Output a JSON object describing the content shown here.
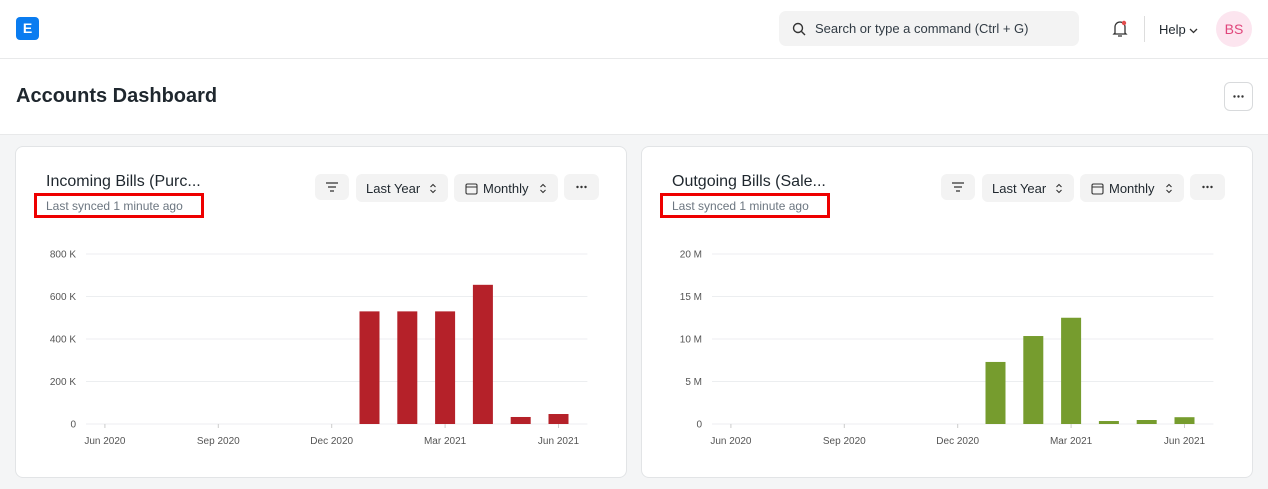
{
  "navbar": {
    "logo": "E",
    "search_placeholder": "Search or type a command (Ctrl + G)",
    "help": "Help",
    "avatar": "BS"
  },
  "page_title": "Accounts Dashboard",
  "chart_data": [
    {
      "type": "bar",
      "title": "Incoming Bills (Purc...",
      "subtitle": "Last synced 1 minute ago",
      "timespan": "Last Year",
      "interval": "Monthly",
      "color": "#b52129",
      "categories": [
        "Jun 2020",
        null,
        null,
        "Sep 2020",
        null,
        null,
        "Dec 2020",
        null,
        null,
        "Mar 2021",
        null,
        null,
        "Jun 2021"
      ],
      "values": [
        0,
        0,
        0,
        0,
        0,
        0,
        0,
        530000,
        530000,
        530000,
        655000,
        33000,
        47000
      ],
      "ylim": [
        0,
        800000
      ],
      "yticks": [
        0,
        {
          "value": 200000,
          "label": "200 K"
        },
        {
          "value": 400000,
          "label": "400 K"
        },
        {
          "value": 600000,
          "label": "600 K"
        },
        {
          "value": 800000,
          "label": "800 K"
        }
      ],
      "grid": true
    },
    {
      "type": "bar",
      "title": "Outgoing Bills (Sale...",
      "subtitle": "Last synced 1 minute ago",
      "timespan": "Last Year",
      "interval": "Monthly",
      "color": "#769c2e",
      "categories": [
        "Jun 2020",
        null,
        null,
        "Sep 2020",
        null,
        null,
        "Dec 2020",
        null,
        null,
        "Mar 2021",
        null,
        null,
        "Jun 2021"
      ],
      "values": [
        0,
        0,
        0,
        0,
        0,
        0,
        0,
        7300000,
        10350000,
        12500000,
        350000,
        470000,
        800000
      ],
      "ylim": [
        0,
        20000000
      ],
      "yticks": [
        0,
        {
          "value": 5000000,
          "label": "5 M"
        },
        {
          "value": 10000000,
          "label": "10 M"
        },
        {
          "value": 15000000,
          "label": "15 M"
        },
        {
          "value": 20000000,
          "label": "20 M"
        }
      ],
      "grid": true
    }
  ]
}
